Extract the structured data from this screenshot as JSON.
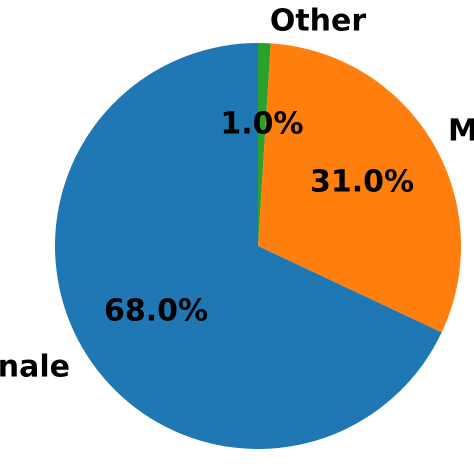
{
  "chart_data": {
    "type": "pie",
    "title": "",
    "start_angle_deg": 90,
    "direction": "clockwise",
    "slices": [
      {
        "label": "Other",
        "value": 1.0,
        "pct_label": "1.0%",
        "color": "#2ca02c"
      },
      {
        "label": "M",
        "value": 31.0,
        "pct_label": "31.0%",
        "color": "#ff7f0e"
      },
      {
        "label": "nale",
        "value": 68.0,
        "pct_label": "68.0%",
        "color": "#1f77b4"
      }
    ]
  }
}
